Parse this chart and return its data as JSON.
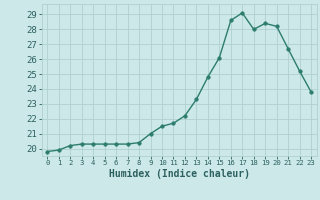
{
  "x": [
    0,
    1,
    2,
    3,
    4,
    5,
    6,
    7,
    8,
    9,
    10,
    11,
    12,
    13,
    14,
    15,
    16,
    17,
    18,
    19,
    20,
    21,
    22,
    23
  ],
  "y": [
    19.8,
    19.9,
    20.2,
    20.3,
    20.3,
    20.3,
    20.3,
    20.3,
    20.4,
    21.0,
    21.5,
    21.7,
    22.2,
    23.3,
    24.8,
    26.1,
    28.6,
    29.1,
    28.0,
    28.4,
    28.2,
    26.7,
    25.2,
    23.8
  ],
  "line_color": "#2d7d6e",
  "marker": "o",
  "marker_size": 2.5,
  "line_width": 1.0,
  "bg_color": "#cce8e8",
  "grid_color": "#b0d0d0",
  "tick_color": "#2d6060",
  "xlabel": "Humidex (Indice chaleur)",
  "xlabel_fontsize": 7,
  "ylabel_values": [
    20,
    21,
    22,
    23,
    24,
    25,
    26,
    27,
    28,
    29
  ],
  "ylim": [
    19.5,
    29.7
  ],
  "xlim": [
    -0.5,
    23.5
  ],
  "ytick_fontsize": 6.5,
  "xtick_fontsize": 5.2
}
